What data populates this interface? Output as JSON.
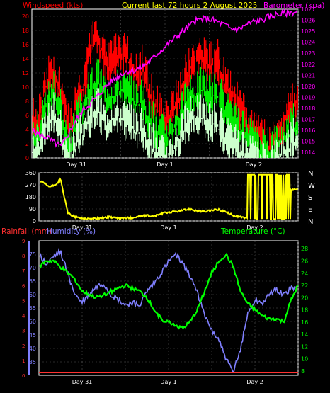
{
  "header": {
    "wind_label": "Windspeed (kts)",
    "title": "Current last 72 hours 2 August 2025",
    "baro_label": "Barometer (kpa)",
    "rain_label": "Rainfall (mm)",
    "humidity_label": "Humidity (%)",
    "temp_label": "Temperature (°C)"
  },
  "colors": {
    "wind_label": "#ff0000",
    "baro": "#ff00ff",
    "gust": "#ff0000",
    "avg_wind": "#00ee00",
    "min_wind": "#ccffcc",
    "direction": "#ffff00",
    "humidity": "#8080ff",
    "temperature": "#00ff00",
    "rain": "#ff3030",
    "title": "#ffff00",
    "axis_text": "#ffffff"
  },
  "chart_data": [
    {
      "type": "line",
      "panel": "wind_barometer",
      "x_unit": "hours ago",
      "x_range": [
        72,
        0
      ],
      "x_ticks": [
        {
          "label": "Day 31",
          "hours_ago": 60
        },
        {
          "label": "Day 1",
          "hours_ago": 36
        },
        {
          "label": "Day 2",
          "hours_ago": 12
        }
      ],
      "y_left": {
        "label": "Windspeed (kts)",
        "range": [
          0,
          21
        ],
        "ticks": [
          0,
          2,
          4,
          6,
          8,
          10,
          12,
          14,
          16,
          18,
          20
        ]
      },
      "y_right": {
        "label": "Barometer (kpa)",
        "range": [
          1013.5,
          1027
        ],
        "ticks": [
          1014,
          1015,
          1016,
          1017,
          1018,
          1019,
          1020,
          1021,
          1022,
          1023,
          1024,
          1025,
          1026,
          1027
        ]
      },
      "series": [
        {
          "name": "gust",
          "color": "#ff0000",
          "axis": "left",
          "x": [
            72,
            70,
            68,
            66,
            64,
            62,
            60,
            58,
            56,
            54,
            52,
            50,
            48,
            46,
            44,
            42,
            40,
            38,
            36,
            34,
            32,
            30,
            28,
            26,
            24,
            22,
            20,
            18,
            16,
            14,
            12,
            10,
            8,
            6,
            4,
            2,
            0
          ],
          "values": [
            6,
            7,
            12,
            13,
            10,
            5,
            9,
            11,
            17,
            18,
            14,
            15,
            16,
            15,
            13,
            14,
            10,
            8,
            6,
            8,
            10,
            13,
            15,
            16,
            14,
            15,
            12,
            10,
            8,
            6,
            5,
            4,
            3,
            4,
            6,
            8,
            9
          ]
        },
        {
          "name": "average",
          "color": "#00ee00",
          "axis": "left",
          "x": [
            72,
            70,
            68,
            66,
            64,
            62,
            60,
            58,
            56,
            54,
            52,
            50,
            48,
            46,
            44,
            42,
            40,
            38,
            36,
            34,
            32,
            30,
            28,
            26,
            24,
            22,
            20,
            18,
            16,
            14,
            12,
            10,
            8,
            6,
            4,
            2,
            0
          ],
          "values": [
            4,
            5,
            9,
            10,
            7,
            2,
            6,
            8,
            11,
            12,
            10,
            10,
            11,
            10,
            9,
            9,
            6,
            5,
            4,
            5,
            7,
            9,
            10,
            11,
            10,
            10,
            8,
            6,
            5,
            4,
            3,
            2,
            2,
            3,
            4,
            5,
            6
          ]
        },
        {
          "name": "minimum",
          "color": "#ccffcc",
          "axis": "left",
          "x": [
            72,
            70,
            68,
            66,
            64,
            62,
            60,
            58,
            56,
            54,
            52,
            50,
            48,
            46,
            44,
            42,
            40,
            38,
            36,
            34,
            32,
            30,
            28,
            26,
            24,
            22,
            20,
            18,
            16,
            14,
            12,
            10,
            8,
            6,
            4,
            2,
            0
          ],
          "values": [
            2,
            3,
            6,
            7,
            4,
            0,
            3,
            5,
            7,
            8,
            6,
            7,
            7,
            6,
            5,
            5,
            3,
            2,
            1,
            2,
            4,
            6,
            7,
            7,
            6,
            6,
            4,
            3,
            2,
            1,
            1,
            0,
            0,
            1,
            2,
            3,
            4
          ]
        },
        {
          "name": "barometer",
          "color": "#ff00ff",
          "axis": "right",
          "x": [
            72,
            70,
            68,
            66,
            64,
            62,
            60,
            58,
            56,
            54,
            52,
            50,
            48,
            46,
            44,
            42,
            40,
            38,
            36,
            34,
            32,
            30,
            28,
            26,
            24,
            22,
            20,
            18,
            16,
            14,
            12,
            10,
            8,
            6,
            4,
            2,
            0
          ],
          "values": [
            1016,
            1015.6,
            1015.4,
            1014.9,
            1014.5,
            1015.8,
            1017,
            1017.9,
            1018.5,
            1019.2,
            1020,
            1020.6,
            1021.1,
            1021.4,
            1021.5,
            1021.8,
            1022.3,
            1023,
            1023.6,
            1024.2,
            1024.8,
            1025.3,
            1025.9,
            1026.1,
            1026.1,
            1025.9,
            1025.6,
            1025.2,
            1025.2,
            1025.6,
            1025.9,
            1026,
            1026.3,
            1026.5,
            1026.6,
            1026.7,
            1026.8
          ]
        }
      ]
    },
    {
      "type": "line",
      "panel": "wind_direction",
      "x_unit": "hours ago",
      "x_range": [
        72,
        0
      ],
      "x_ticks": [
        {
          "label": "Day 31",
          "hours_ago": 60
        },
        {
          "label": "Day 1",
          "hours_ago": 36
        },
        {
          "label": "Day 2",
          "hours_ago": 12
        }
      ],
      "y_left": {
        "range": [
          0,
          360
        ],
        "ticks": [
          0,
          90,
          180,
          270,
          360
        ]
      },
      "y_right_labels": [
        "N",
        "W",
        "S",
        "E",
        "N"
      ],
      "series": [
        {
          "name": "direction",
          "color": "#ffff00",
          "x": [
            72,
            71,
            70,
            69,
            68,
            67,
            66,
            64,
            62,
            60,
            58,
            56,
            54,
            52,
            50,
            48,
            46,
            44,
            42,
            40,
            38,
            36,
            34,
            32,
            30,
            28,
            26,
            24,
            22,
            20,
            18,
            16,
            14,
            13,
            12,
            10,
            8,
            6,
            4,
            2,
            0
          ],
          "values": [
            300,
            290,
            270,
            255,
            265,
            280,
            310,
            60,
            30,
            20,
            15,
            20,
            25,
            30,
            18,
            22,
            25,
            35,
            40,
            35,
            55,
            65,
            70,
            80,
            90,
            75,
            70,
            80,
            85,
            65,
            40,
            30,
            20,
            340,
            10,
            340,
            30,
            345,
            320,
            230,
            240
          ]
        }
      ]
    },
    {
      "type": "line",
      "panel": "rain_humidity_temperature",
      "x_unit": "hours ago",
      "x_range": [
        72,
        0
      ],
      "x_ticks": [
        {
          "label": "Day 31",
          "hours_ago": 60
        },
        {
          "label": "Day 1",
          "hours_ago": 36
        },
        {
          "label": "Day 2",
          "hours_ago": 12
        }
      ],
      "y_left": {
        "label": "Humidity (%)",
        "range": [
          30,
          80
        ],
        "ticks": [
          35,
          40,
          45,
          50,
          55,
          60,
          65,
          70,
          75
        ]
      },
      "y_rain": {
        "label": "Rainfall (mm)",
        "ticks": [
          0,
          1,
          2,
          3,
          4,
          5,
          6,
          7,
          8,
          9
        ]
      },
      "y_right": {
        "label": "Temperature (°C)",
        "range": [
          7.3,
          29.3
        ],
        "ticks": [
          8,
          10,
          12,
          14,
          16,
          18,
          20,
          22,
          24,
          26,
          28
        ]
      },
      "series": [
        {
          "name": "humidity",
          "color": "#8080ff",
          "axis": "left",
          "x": [
            72,
            70,
            68,
            66,
            64,
            62,
            60,
            58,
            56,
            54,
            52,
            50,
            48,
            46,
            44,
            42,
            40,
            38,
            36,
            34,
            32,
            30,
            28,
            26,
            24,
            22,
            20,
            18,
            16,
            14,
            12,
            10,
            8,
            6,
            4,
            2,
            0
          ],
          "values": [
            75,
            71,
            74,
            76,
            68,
            60,
            57,
            60,
            63,
            64,
            60,
            58,
            56,
            57,
            56,
            61,
            64,
            68,
            72,
            75,
            71,
            67,
            61,
            52,
            47,
            43,
            36,
            31,
            40,
            53,
            58,
            57,
            60,
            62,
            60,
            62,
            63
          ]
        },
        {
          "name": "temperature",
          "color": "#00ff00",
          "axis": "right",
          "x": [
            72,
            70,
            68,
            66,
            64,
            62,
            60,
            58,
            56,
            54,
            52,
            50,
            48,
            46,
            44,
            42,
            40,
            38,
            36,
            34,
            32,
            30,
            28,
            26,
            24,
            22,
            20,
            18,
            16,
            14,
            12,
            10,
            8,
            6,
            4,
            2,
            0
          ],
          "values": [
            25,
            26,
            26,
            25,
            24,
            23,
            21,
            20.5,
            20,
            20.5,
            21,
            21.5,
            22,
            21.5,
            21,
            20,
            18,
            16.5,
            16,
            15.5,
            15,
            16,
            18,
            21,
            24,
            26,
            27,
            25,
            21,
            19,
            18,
            17,
            16.5,
            16.5,
            16,
            19.5,
            22
          ]
        },
        {
          "name": "rainfall",
          "color": "#ff3030",
          "axis": "rain",
          "x": [
            72,
            0
          ],
          "values": [
            0,
            0
          ]
        }
      ]
    }
  ]
}
